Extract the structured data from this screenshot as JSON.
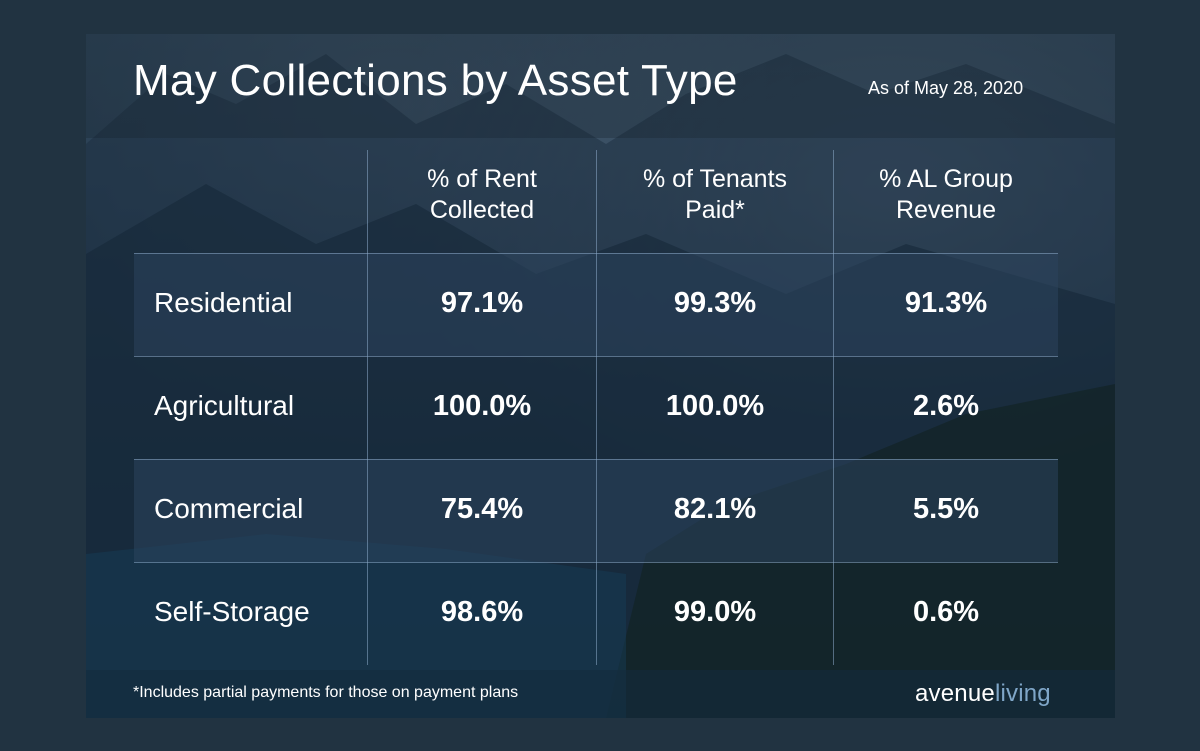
{
  "title": "May Collections by Asset Type",
  "as_of": "As of May 28, 2020",
  "footnote": "*Includes partial payments for those on payment plans",
  "logo": {
    "part1": "avenue",
    "part2": "living"
  },
  "colors": {
    "frame": "#213341",
    "logo_accent": "#7fa6c8",
    "text": "#ffffff"
  },
  "chart_data": {
    "type": "table",
    "columns": [
      {
        "line1": "% of Rent",
        "line2": "Collected"
      },
      {
        "line1": "% of Tenants",
        "line2": "Paid*"
      },
      {
        "line1": "% AL Group",
        "line2": "Revenue"
      }
    ],
    "rows": [
      {
        "label": "Residential",
        "values": [
          "97.1%",
          "99.3%",
          "91.3%"
        ]
      },
      {
        "label": "Agricultural",
        "values": [
          "100.0%",
          "100.0%",
          "2.6%"
        ]
      },
      {
        "label": "Commercial",
        "values": [
          "75.4%",
          "82.1%",
          "5.5%"
        ]
      },
      {
        "label": "Self-Storage",
        "values": [
          "98.6%",
          "99.0%",
          "0.6%"
        ]
      }
    ]
  }
}
